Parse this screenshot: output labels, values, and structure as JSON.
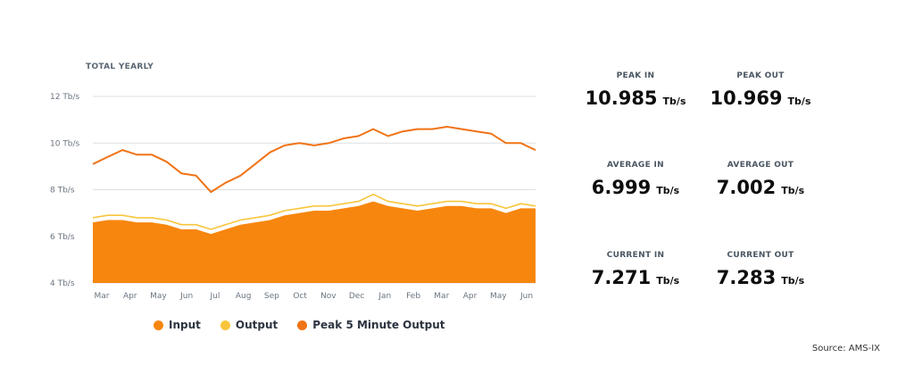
{
  "chart_data": {
    "type": "area",
    "title": "TOTAL YEARLY",
    "y_unit": "Tb/s",
    "ylim": [
      4,
      12
    ],
    "y_ticks": [
      "4 Tb/s",
      "6 Tb/s",
      "8 Tb/s",
      "10 Tb/s",
      "12 Tb/s"
    ],
    "x_ticks": [
      "Mar",
      "Apr",
      "May",
      "Jun",
      "Jul",
      "Aug",
      "Sep",
      "Oct",
      "Nov",
      "Dec",
      "Jan",
      "Feb",
      "Mar",
      "Apr",
      "May",
      "Jun"
    ],
    "grid": true,
    "legend_position": "bottom",
    "series": [
      {
        "name": "Input",
        "color": "#f7860e",
        "style": "filled-area",
        "values": [
          6.6,
          6.7,
          6.7,
          6.6,
          6.6,
          6.5,
          6.3,
          6.3,
          6.1,
          6.3,
          6.5,
          6.6,
          6.7,
          6.9,
          7.0,
          7.1,
          7.1,
          7.2,
          7.3,
          7.5,
          7.3,
          7.2,
          7.1,
          7.2,
          7.3,
          7.3,
          7.2,
          7.2,
          7.0,
          7.2,
          7.2
        ]
      },
      {
        "name": "Output",
        "color": "#f8c53c",
        "style": "line",
        "values": [
          6.8,
          6.9,
          6.9,
          6.8,
          6.8,
          6.7,
          6.5,
          6.5,
          6.3,
          6.5,
          6.7,
          6.8,
          6.9,
          7.1,
          7.2,
          7.3,
          7.3,
          7.4,
          7.5,
          7.8,
          7.5,
          7.4,
          7.3,
          7.4,
          7.5,
          7.5,
          7.4,
          7.4,
          7.2,
          7.4,
          7.3
        ]
      },
      {
        "name": "Peak 5 Minute Output",
        "color": "#f07316",
        "style": "line",
        "values": [
          9.1,
          9.4,
          9.7,
          9.5,
          9.5,
          9.2,
          8.7,
          8.6,
          7.9,
          8.3,
          8.6,
          9.1,
          9.6,
          9.9,
          10.0,
          9.9,
          10.0,
          10.2,
          10.3,
          10.6,
          10.3,
          10.5,
          10.6,
          10.6,
          10.7,
          10.6,
          10.5,
          10.4,
          10.0,
          10.0,
          9.7
        ]
      }
    ]
  },
  "stats": [
    {
      "label": "PEAK IN",
      "value": "10.985",
      "unit": "Tb/s"
    },
    {
      "label": "PEAK OUT",
      "value": "10.969",
      "unit": "Tb/s"
    },
    {
      "label": "AVERAGE IN",
      "value": "6.999",
      "unit": "Tb/s"
    },
    {
      "label": "AVERAGE OUT",
      "value": "7.002",
      "unit": "Tb/s"
    },
    {
      "label": "CURRENT IN",
      "value": "7.271",
      "unit": "Tb/s"
    },
    {
      "label": "CURRENT OUT",
      "value": "7.283",
      "unit": "Tb/s"
    }
  ],
  "source": "Source: AMS-IX"
}
